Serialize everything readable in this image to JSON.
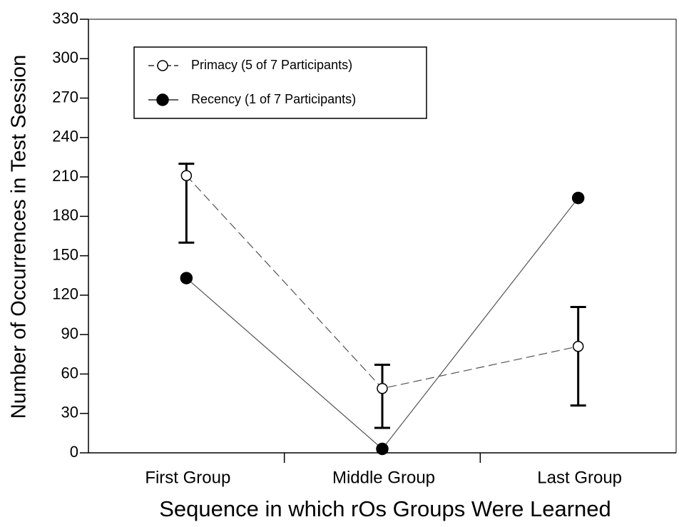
{
  "chart_data": {
    "type": "line",
    "xlabel": "Sequence in which rOs Groups Were Learned",
    "ylabel": "Number of Occurrences in Test Session",
    "categories": [
      "First Group",
      "Middle Group",
      "Last Group"
    ],
    "series": [
      {
        "name": "Primacy (5 of 7 Participants)",
        "color": "#000000",
        "line_style": "dashed",
        "marker": "open",
        "values": [
          211,
          49,
          81
        ],
        "error_plus": [
          9,
          18,
          30
        ],
        "error_minus": [
          51,
          30,
          45
        ]
      },
      {
        "name": "Recency (1 of 7 Participants)",
        "color": "#000000",
        "line_style": "solid",
        "marker": "filled",
        "values": [
          133,
          3,
          194
        ]
      }
    ],
    "ylim": [
      0,
      330
    ],
    "yticks": [
      0,
      30,
      60,
      90,
      120,
      150,
      180,
      210,
      240,
      270,
      300,
      330
    ],
    "legend": "upper left"
  }
}
